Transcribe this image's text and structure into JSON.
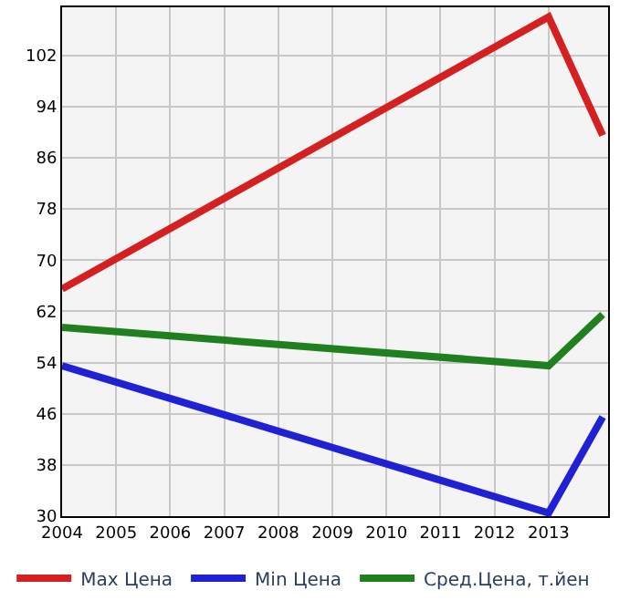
{
  "chart_data": {
    "type": "line",
    "x": [
      2004,
      2013,
      2014
    ],
    "series": [
      {
        "name": "Max Цена",
        "color": "#d42020",
        "values": [
          65.5,
          108,
          89.5
        ]
      },
      {
        "name": "Min Цена",
        "color": "#2020d4",
        "values": [
          53.5,
          30.5,
          45.5
        ]
      },
      {
        "name": "Сред.Цена, т.йен",
        "color": "#208020",
        "values": [
          59.5,
          53.5,
          61.5
        ]
      }
    ],
    "xlim": [
      2004,
      2014.1
    ],
    "xticks": [
      2004,
      2005,
      2006,
      2007,
      2008,
      2009,
      2010,
      2011,
      2012,
      2013
    ],
    "ylim": [
      30,
      109.5
    ],
    "yticks": [
      30,
      38,
      46,
      54,
      62,
      70,
      78,
      86,
      94,
      102
    ],
    "grid": true,
    "legend": "bottom",
    "marker": "none",
    "line_style": "solid"
  }
}
